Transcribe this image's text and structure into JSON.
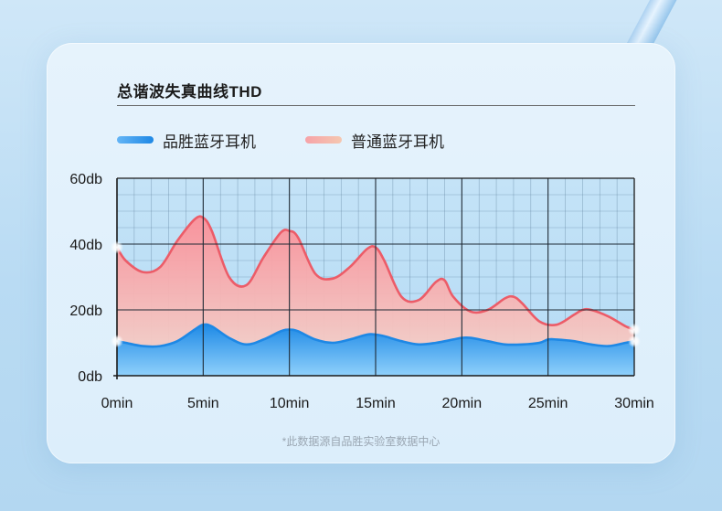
{
  "title": "总谐波失真曲线THD",
  "footnote": "*此数据源自品胜实验室数据中心",
  "colors": {
    "series1": "#1e88e5",
    "series2": "#ef6b73",
    "grid": "#1a1a1a"
  },
  "chart_data": {
    "type": "area",
    "title": "总谐波失真曲线THD",
    "xlabel": "",
    "ylabel": "",
    "xlim": [
      0,
      30
    ],
    "ylim": [
      0,
      60
    ],
    "x_ticks": [
      "0min",
      "5min",
      "10min",
      "15min",
      "20min",
      "25min",
      "30min"
    ],
    "y_ticks": [
      "0db",
      "20db",
      "40db",
      "60db"
    ],
    "grid": true,
    "legend": "top-left",
    "series": [
      {
        "name": "品胜蓝牙耳机",
        "color": "#1e88e5",
        "x": [
          0,
          0.5,
          1.5,
          2.5,
          3.5,
          4.5,
          5,
          5.5,
          6.5,
          7.5,
          8.5,
          9.5,
          10,
          10.5,
          11.5,
          12.5,
          13.5,
          14.5,
          15,
          15.5,
          16.5,
          17.5,
          18.5,
          19.5,
          20,
          20.5,
          21.5,
          22.5,
          23.5,
          24.5,
          25,
          25.5,
          26.5,
          27.5,
          28.5,
          29.5,
          30
        ],
        "y": [
          10.5,
          10,
          9,
          9,
          10.5,
          14,
          15.5,
          15,
          11.5,
          9.5,
          11,
          13.5,
          14,
          13.5,
          11,
          10,
          11,
          12.5,
          12.5,
          12,
          10.5,
          9.5,
          10,
          11,
          11.5,
          11.5,
          10.5,
          9.5,
          9.5,
          10,
          11,
          11,
          10.5,
          9.5,
          9,
          10,
          10.5
        ]
      },
      {
        "name": "普通蓝牙耳机",
        "color": "#ef6b73",
        "x": [
          0,
          0.5,
          1.5,
          2.5,
          3.5,
          4.5,
          5,
          5.5,
          6.5,
          7.5,
          8.5,
          9.5,
          10,
          10.5,
          11.5,
          12.5,
          13.5,
          14.5,
          15,
          15.5,
          16.5,
          17.5,
          18.5,
          19,
          19.5,
          20.5,
          21.5,
          22.5,
          23,
          23.5,
          24.5,
          25.5,
          26.5,
          27,
          27.5,
          28.5,
          29.5,
          30
        ],
        "y": [
          39,
          35,
          31.5,
          33,
          41,
          47.5,
          48,
          44,
          30,
          27.5,
          36,
          43.5,
          44,
          42,
          31,
          29.5,
          33,
          38.5,
          39,
          35,
          24,
          23,
          28.5,
          29,
          24,
          19.5,
          20,
          23.5,
          24,
          22,
          16.5,
          15.5,
          18.5,
          20,
          20,
          18,
          15,
          14
        ]
      }
    ]
  }
}
